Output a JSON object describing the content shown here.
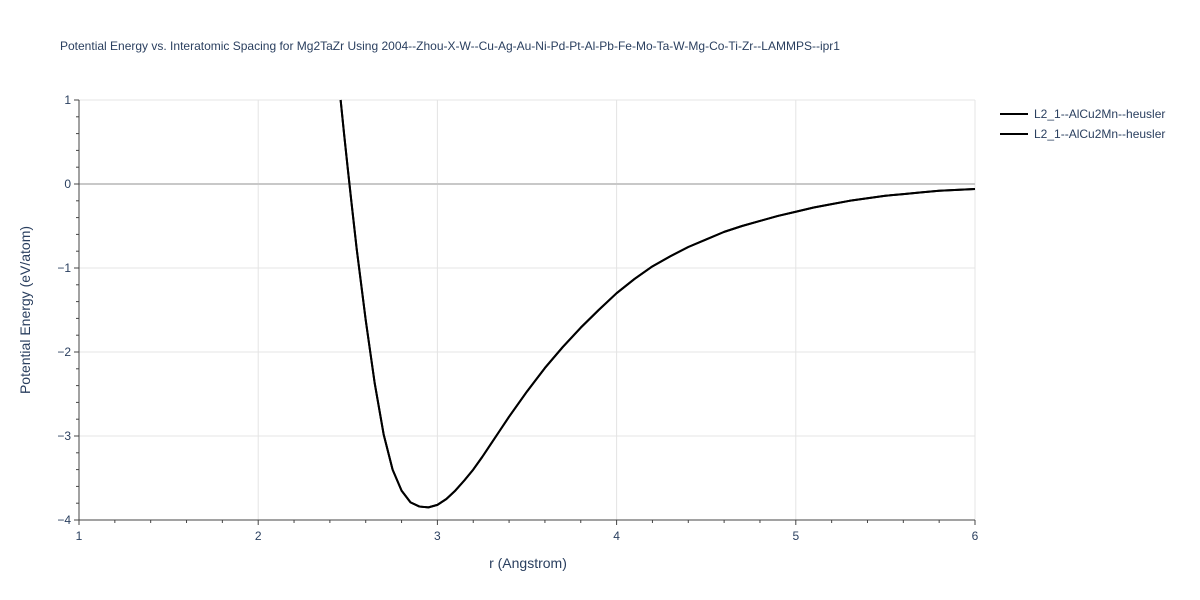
{
  "chart_data": {
    "type": "line",
    "title": "Potential Energy vs. Interatomic Spacing for Mg2TaZr Using 2004--Zhou-X-W--Cu-Ag-Au-Ni-Pd-Pt-Al-Pb-Fe-Mo-Ta-W-Mg-Co-Ti-Zr--LAMMPS--ipr1",
    "xlabel": "r (Angstrom)",
    "ylabel": "Potential Energy (eV/atom)",
    "xlim": [
      1,
      6
    ],
    "ylim": [
      -4,
      1
    ],
    "x_ticks": [
      1,
      2,
      3,
      4,
      5,
      6
    ],
    "y_ticks": [
      1,
      0,
      -1,
      -2,
      -3,
      -4
    ],
    "x_tick_labels": [
      "1",
      "2",
      "3",
      "4",
      "5",
      "6"
    ],
    "y_tick_labels": [
      "1",
      "0",
      "−1",
      "−2",
      "−3",
      "−4"
    ],
    "grid": true,
    "legend_position": "top-right",
    "line_color": "#000000",
    "series": [
      {
        "name": "L2_1--AlCu2Mn--heusler",
        "x": [
          2.46,
          2.48,
          2.5,
          2.52,
          2.55,
          2.6,
          2.65,
          2.7,
          2.75,
          2.8,
          2.85,
          2.9,
          2.95,
          3.0,
          3.05,
          3.1,
          3.15,
          3.2,
          3.25,
          3.3,
          3.35,
          3.4,
          3.5,
          3.6,
          3.7,
          3.8,
          3.9,
          4.0,
          4.1,
          4.2,
          4.3,
          4.4,
          4.5,
          4.6,
          4.7,
          4.8,
          4.9,
          5.0,
          5.1,
          5.2,
          5.3,
          5.4,
          5.5,
          5.6,
          5.7,
          5.8,
          5.9,
          6.0
        ],
        "y": [
          1.0,
          0.58,
          0.18,
          -0.21,
          -0.78,
          -1.62,
          -2.37,
          -2.98,
          -3.4,
          -3.65,
          -3.79,
          -3.84,
          -3.85,
          -3.82,
          -3.75,
          -3.65,
          -3.53,
          -3.4,
          -3.25,
          -3.09,
          -2.93,
          -2.77,
          -2.47,
          -2.19,
          -1.94,
          -1.71,
          -1.5,
          -1.3,
          -1.13,
          -0.98,
          -0.86,
          -0.75,
          -0.66,
          -0.57,
          -0.5,
          -0.44,
          -0.38,
          -0.33,
          -0.28,
          -0.24,
          -0.2,
          -0.17,
          -0.14,
          -0.12,
          -0.1,
          -0.08,
          -0.07,
          -0.06
        ]
      },
      {
        "name": "L2_1--AlCu2Mn--heusler",
        "x": [
          2.46,
          2.48,
          2.5,
          2.52,
          2.55,
          2.6,
          2.65,
          2.7,
          2.75,
          2.8,
          2.85,
          2.9,
          2.95,
          3.0,
          3.05,
          3.1,
          3.15,
          3.2,
          3.25,
          3.3,
          3.35,
          3.4,
          3.5,
          3.6,
          3.7,
          3.8,
          3.9,
          4.0,
          4.1,
          4.2,
          4.3,
          4.4,
          4.5,
          4.6,
          4.7,
          4.8,
          4.9,
          5.0,
          5.1,
          5.2,
          5.3,
          5.4,
          5.5,
          5.6,
          5.7,
          5.8,
          5.9,
          6.0
        ],
        "y": [
          1.0,
          0.58,
          0.18,
          -0.21,
          -0.78,
          -1.62,
          -2.37,
          -2.98,
          -3.4,
          -3.65,
          -3.79,
          -3.84,
          -3.85,
          -3.82,
          -3.75,
          -3.65,
          -3.53,
          -3.4,
          -3.25,
          -3.09,
          -2.93,
          -2.77,
          -2.47,
          -2.19,
          -1.94,
          -1.71,
          -1.5,
          -1.3,
          -1.13,
          -0.98,
          -0.86,
          -0.75,
          -0.66,
          -0.57,
          -0.5,
          -0.44,
          -0.38,
          -0.33,
          -0.28,
          -0.24,
          -0.2,
          -0.17,
          -0.14,
          -0.12,
          -0.1,
          -0.08,
          -0.07,
          -0.06
        ]
      }
    ]
  }
}
